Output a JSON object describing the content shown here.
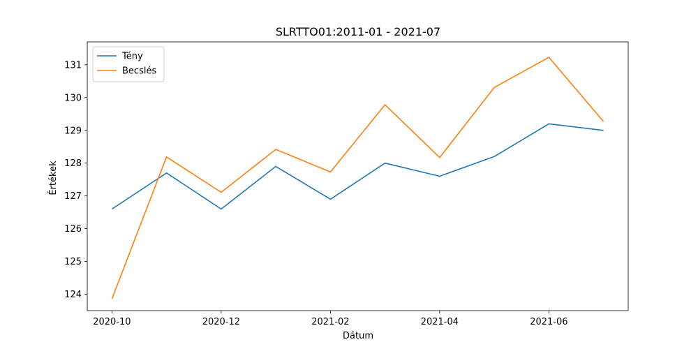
{
  "chart_data": {
    "type": "line",
    "title": "SLRTTO01:2011-01 - 2021-07",
    "xlabel": "Dátum",
    "ylabel": "Értékek",
    "x": [
      "2020-10",
      "2020-11",
      "2020-12",
      "2021-01",
      "2021-02",
      "2021-03",
      "2021-04",
      "2021-05",
      "2021-06",
      "2021-07"
    ],
    "x_ticks": [
      "2020-10",
      "2020-12",
      "2021-02",
      "2021-04",
      "2021-06"
    ],
    "y_ticks": [
      124,
      125,
      126,
      127,
      128,
      129,
      130,
      131
    ],
    "ylim": [
      123.5,
      131.7
    ],
    "grid": false,
    "legend_position": "top-left",
    "series": [
      {
        "name": "Tény",
        "color": "#1f77b4",
        "values": [
          126.6,
          127.7,
          126.6,
          127.9,
          126.9,
          128.0,
          127.6,
          128.2,
          129.2,
          129.0
        ]
      },
      {
        "name": "Becslés",
        "color": "#ff7f0e",
        "values": [
          123.86,
          128.19,
          127.11,
          128.42,
          127.73,
          129.78,
          128.17,
          130.31,
          131.23,
          129.27
        ]
      }
    ]
  }
}
